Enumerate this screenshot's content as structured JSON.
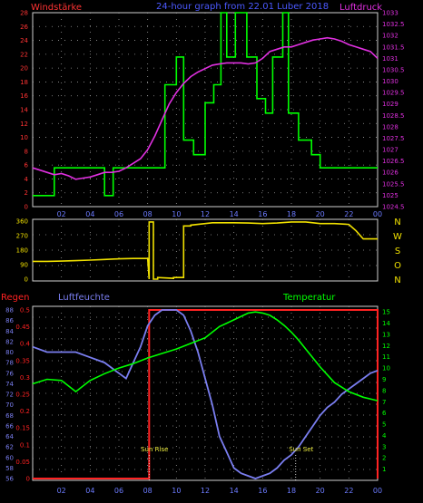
{
  "colors": {
    "wind": "#ff3333",
    "subtitle": "#4b59ff",
    "pressure": "#e030e0",
    "humidity": "#7a7ef0",
    "temperature": "#00ff00",
    "rain": "#ff2222",
    "direction": "#f0e000",
    "grid": "#9a9a9a",
    "axis": "#6c7bff"
  },
  "header": {
    "left": "Windstärke",
    "center": "24-hour graph from 22.01 Luber 2018",
    "right": "Luftdruck"
  },
  "xticks": [
    "02",
    "04",
    "06",
    "08",
    "10",
    "12",
    "14",
    "16",
    "18",
    "20",
    "22",
    "00"
  ],
  "wind_chart": {
    "type": "line",
    "yticks": [
      "0",
      "2",
      "4",
      "6",
      "8",
      "10",
      "12",
      "14",
      "16",
      "18",
      "20",
      "22",
      "24",
      "26",
      "28"
    ],
    "ylim": [
      0,
      28
    ],
    "pressure_ticks": [
      "1033",
      "1032.5",
      "1032",
      "1031.5",
      "1031",
      "1030.5",
      "1030",
      "1029.5",
      "1029",
      "1028.5",
      "1028",
      "1027.5",
      "1027",
      "1026.5",
      "1026",
      "1025.5",
      "1025",
      "1024.5"
    ],
    "pressure_lim": [
      1024.5,
      1033
    ],
    "wind_series": {
      "x": [
        0,
        1.5,
        1.5,
        5,
        5,
        5.6,
        5.6,
        9.2,
        9.2,
        10,
        10,
        10.5,
        10.5,
        11.2,
        11.2,
        12,
        12,
        12.6,
        12.6,
        13.1,
        13.1,
        13.5,
        13.5,
        14.1,
        14.1,
        14.9,
        14.9,
        15.6,
        15.6,
        16.2,
        16.2,
        16.7,
        16.7,
        17.4,
        17.4,
        17.8,
        17.8,
        18.5,
        18.5,
        19.4,
        19.4,
        20,
        20,
        24
      ],
      "y": [
        1.6,
        1.6,
        5.6,
        5.6,
        1.6,
        1.6,
        5.6,
        5.6,
        17.6,
        17.6,
        21.6,
        21.6,
        9.6,
        9.6,
        7.5,
        7.5,
        15,
        15,
        17.6,
        17.6,
        28,
        28,
        21.6,
        21.6,
        28,
        28,
        21.6,
        21.6,
        15.6,
        15.6,
        13.5,
        13.5,
        21.6,
        21.6,
        28,
        28,
        13.5,
        13.5,
        9.6,
        9.6,
        7.5,
        7.5,
        5.6,
        5.6
      ]
    },
    "pressure_series": {
      "x": [
        0,
        0.5,
        1,
        1.5,
        2,
        2.5,
        3,
        3.5,
        4,
        4.5,
        5,
        5.5,
        6,
        6.5,
        7,
        7.5,
        8,
        8.5,
        9,
        9.5,
        10,
        10.5,
        11,
        11.5,
        12,
        12.5,
        13,
        13.5,
        14,
        14.5,
        15,
        15.5,
        16,
        16.5,
        17,
        17.5,
        18,
        18.5,
        19,
        19.5,
        20,
        20.5,
        21,
        21.5,
        22,
        22.5,
        23,
        23.5,
        24
      ],
      "y": [
        1026.2,
        1026.1,
        1026.0,
        1025.9,
        1025.95,
        1025.85,
        1025.7,
        1025.75,
        1025.8,
        1025.9,
        1026.0,
        1026.0,
        1026.05,
        1026.2,
        1026.4,
        1026.6,
        1027.0,
        1027.6,
        1028.3,
        1029.0,
        1029.5,
        1029.9,
        1030.2,
        1030.4,
        1030.55,
        1030.7,
        1030.75,
        1030.8,
        1030.8,
        1030.8,
        1030.75,
        1030.8,
        1031.0,
        1031.3,
        1031.4,
        1031.5,
        1031.5,
        1031.6,
        1031.7,
        1031.8,
        1031.85,
        1031.9,
        1031.85,
        1031.75,
        1031.6,
        1031.5,
        1031.4,
        1031.3,
        1031.0
      ]
    }
  },
  "direction_chart": {
    "type": "line",
    "yticks": [
      "0",
      "90",
      "180",
      "270",
      "360"
    ],
    "ylim": [
      0,
      360
    ],
    "compass": [
      "N",
      "W",
      "S",
      "O",
      "N"
    ],
    "series": {
      "x": [
        0,
        1,
        2,
        3,
        4,
        5,
        6,
        7,
        8,
        8.1,
        8.1,
        8.4,
        8.4,
        8.7,
        8.7,
        9.8,
        9.8,
        10.5,
        10.5,
        11,
        11,
        12,
        12.5,
        13,
        13.5,
        14,
        15,
        16,
        17,
        18,
        19,
        20,
        21,
        22,
        22.5,
        23,
        24
      ],
      "y": [
        110,
        110,
        112,
        115,
        118,
        122,
        126,
        128,
        128,
        0,
        355,
        355,
        0,
        0,
        10,
        5,
        10,
        10,
        330,
        330,
        335,
        345,
        350,
        350,
        350,
        350,
        348,
        345,
        348,
        355,
        355,
        345,
        345,
        340,
        300,
        250,
        250
      ]
    }
  },
  "bottom_chart": {
    "type": "line",
    "labels": {
      "rain": "Regen",
      "humidity": "Luftfeuchte",
      "temperature": "Temperatur"
    },
    "rain_ticks": [
      "0",
      "0.05",
      "0.1",
      "0.15",
      "0.2",
      "0.25",
      "0.3",
      "0.35",
      "0.4",
      "0.45",
      "0.5"
    ],
    "rain_lim": [
      0,
      0.5
    ],
    "humidity_ticks": [
      "56",
      "58",
      "60",
      "62",
      "64",
      "66",
      "68",
      "70",
      "72",
      "74",
      "76",
      "78",
      "80",
      "82",
      "84",
      "86",
      "88"
    ],
    "humidity_lim": [
      56,
      88
    ],
    "temperature_ticks": [
      "1",
      "2",
      "3",
      "4",
      "5",
      "6",
      "7",
      "8",
      "9",
      "10",
      "11",
      "12",
      "13",
      "14",
      "15"
    ],
    "temperature_lim": [
      0,
      15.5
    ],
    "annotations": [
      {
        "text": "Sun Rise",
        "x": 8.1
      },
      {
        "text": "Sun Set",
        "x": 18.3
      }
    ],
    "rain_series": {
      "x": [
        0,
        8.1,
        8.1,
        24,
        24
      ],
      "y": [
        0,
        0,
        0.5,
        0.5,
        0
      ]
    },
    "humidity_series": {
      "x": [
        0,
        1,
        2,
        3,
        4,
        5,
        6,
        6.5,
        7,
        7.5,
        8,
        8.5,
        9,
        9.5,
        10,
        10.5,
        11,
        11.5,
        12,
        12.5,
        13,
        13.5,
        14,
        14.5,
        15,
        15.5,
        16,
        16.5,
        17,
        17.5,
        18,
        18.5,
        19,
        19.5,
        20,
        20.5,
        21,
        21.5,
        22,
        22.5,
        23,
        23.5,
        24
      ],
      "y": [
        81,
        80,
        80,
        80,
        79,
        78,
        76,
        75,
        78,
        81,
        85,
        87,
        88,
        88,
        88,
        87,
        84,
        80,
        75,
        70,
        64,
        61,
        58,
        57,
        56.5,
        56,
        56.5,
        57,
        58,
        59.5,
        60.5,
        62,
        64,
        66,
        68,
        69.5,
        70.5,
        72,
        73,
        74,
        75,
        76,
        76.5
      ]
    },
    "temperature_series": {
      "x": [
        0,
        1,
        2,
        3,
        4,
        5,
        6,
        7,
        8,
        9,
        10,
        11,
        12,
        12.5,
        13,
        13.5,
        14,
        14.5,
        15,
        15.5,
        16,
        16.5,
        17,
        17.5,
        18,
        18.5,
        19,
        19.5,
        20,
        20.5,
        21,
        22,
        23,
        24
      ],
      "y": [
        8.6,
        9.0,
        8.9,
        7.9,
        8.9,
        9.5,
        10.0,
        10.4,
        10.9,
        11.3,
        11.7,
        12.2,
        12.7,
        13.2,
        13.7,
        14.0,
        14.3,
        14.6,
        14.9,
        15.0,
        14.9,
        14.7,
        14.3,
        13.8,
        13.2,
        12.5,
        11.7,
        10.9,
        10.1,
        9.4,
        8.7,
        7.9,
        7.4,
        7.1
      ]
    }
  }
}
